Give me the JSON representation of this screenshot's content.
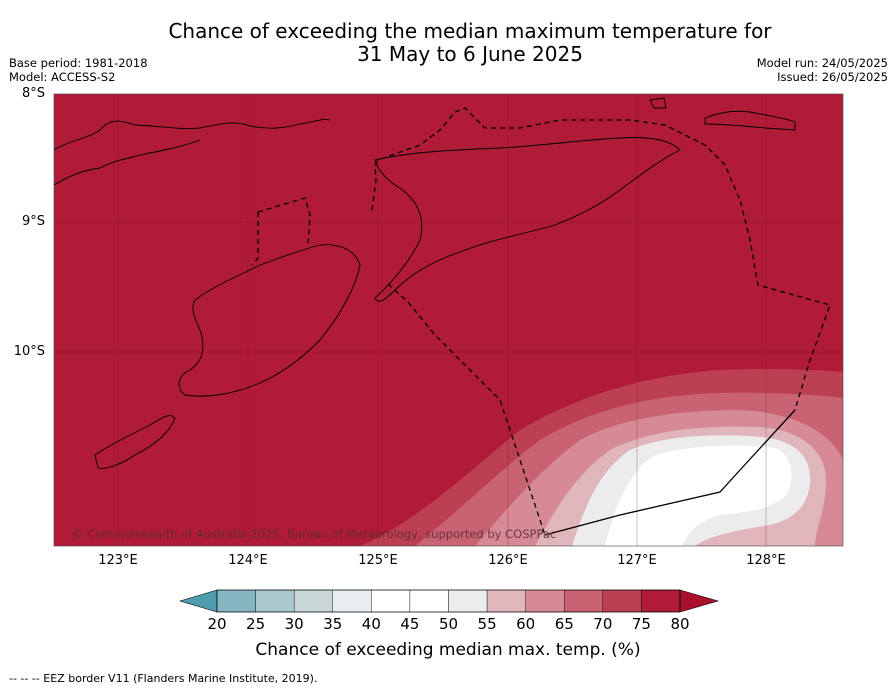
{
  "title_line1": "Chance of exceeding the median maximum temperature for",
  "title_line2": "31 May to 6 June 2025",
  "meta_left": {
    "base_period": "Base period: 1981-2018",
    "model": "Model: ACCESS-S2"
  },
  "meta_right": {
    "model_run": "Model run: 24/05/2025",
    "issued": "Issued: 26/05/2025"
  },
  "lat_labels": [
    "8°S",
    "9°S",
    "10°S"
  ],
  "lon_labels": [
    "123°E",
    "124°E",
    "125°E",
    "126°E",
    "127°E",
    "128°E"
  ],
  "copyright": "© Commonwealth of Australia 2025, Bureau of Meteorology, supported by COSPPac",
  "colorbar": {
    "ticks": [
      "20",
      "25",
      "30",
      "35",
      "40",
      "45",
      "50",
      "55",
      "60",
      "65",
      "70",
      "75",
      "80"
    ],
    "colors": [
      "#62a7b6",
      "#86b6c2",
      "#a8c8cd",
      "#c9d7d9",
      "#e8eef0",
      "#ffffff",
      "#ffffff",
      "#ececec",
      "#e0b5bc",
      "#d68a95",
      "#c96373",
      "#bd3f52",
      "#b01c37"
    ],
    "label": "Chance of exceeding median max. temp. (%)"
  },
  "footer": "-- -- -- EEZ border V11 (Flanders Marine Institute, 2019).",
  "colors": {
    "dominant": "#b01c37",
    "c75": "#bd3f52",
    "c70": "#c96373",
    "c65": "#d68a95",
    "c60": "#e0b5bc",
    "c55": "#ececec",
    "c50": "#ffffff"
  }
}
